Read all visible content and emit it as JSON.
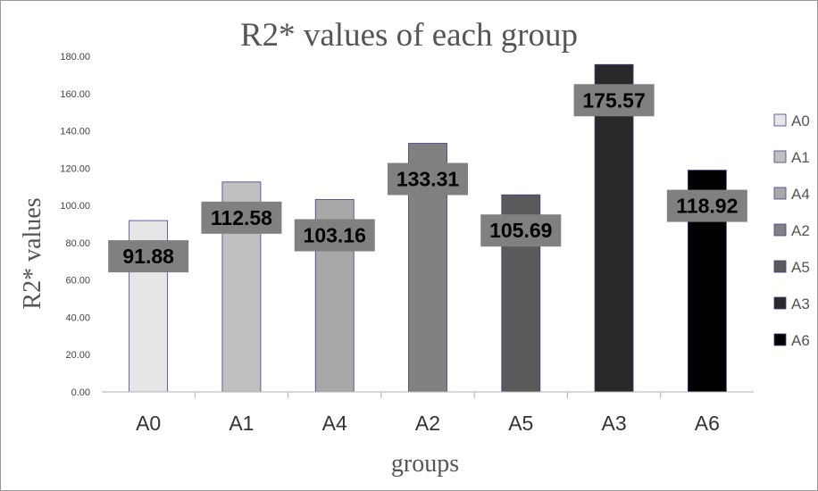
{
  "chart_data": {
    "type": "bar",
    "title": "R2* values of each group",
    "xlabel": "groups",
    "ylabel": "R2* values",
    "categories": [
      "A0",
      "A1",
      "A4",
      "A2",
      "A5",
      "A3",
      "A6"
    ],
    "values": [
      91.88,
      112.58,
      103.16,
      133.31,
      105.69,
      175.57,
      118.92
    ],
    "data_labels": [
      "91.88",
      "112.58",
      "103.16",
      "133.31",
      "105.69",
      "175.57",
      "118.92"
    ],
    "colors": [
      "#e6e6e6",
      "#c0c0c0",
      "#a8a8a8",
      "#818181",
      "#5a5a5a",
      "#292929",
      "#000000"
    ],
    "bar_outline": "#3d3d8c",
    "label_box_color": "#808080",
    "ylim": [
      0,
      180
    ],
    "yticks": [
      "0.00",
      "20.00",
      "40.00",
      "60.00",
      "80.00",
      "100.00",
      "120.00",
      "140.00",
      "160.00",
      "180.00"
    ],
    "grid": false,
    "legend": {
      "position": "right",
      "entries": [
        "A0",
        "A1",
        "A4",
        "A2",
        "A5",
        "A3",
        "A6"
      ]
    }
  }
}
